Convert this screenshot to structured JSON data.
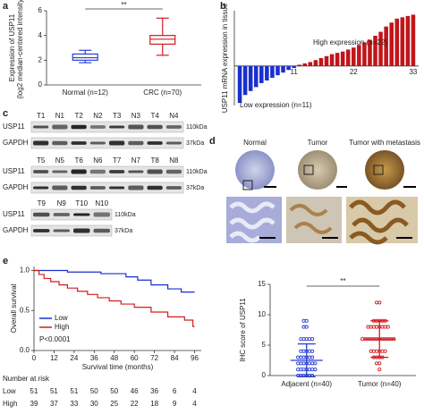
{
  "panel_labels": [
    "a",
    "b",
    "c",
    "d",
    "e"
  ],
  "chart_data": [
    {
      "type": "box",
      "ylabel": [
        "Expression of USP11",
        "(log2 median-centered intensity)"
      ],
      "ylim": [
        0,
        6
      ],
      "yticks": [
        0,
        2,
        4,
        6
      ],
      "significance": "**",
      "categories": [
        "Normal (n=12)",
        "CRC (n=70)"
      ],
      "series": [
        {
          "color": "#2a3fd0",
          "min": 1.8,
          "q1": 2.0,
          "median": 2.2,
          "q3": 2.5,
          "max": 2.8
        },
        {
          "color": "#d01c22",
          "min": 2.4,
          "q1": 3.3,
          "median": 3.7,
          "q3": 4.0,
          "max": 5.4
        }
      ]
    },
    {
      "type": "waterfall",
      "ylabel": "USP11 mRNA expression in tissue",
      "ylim": [
        -3,
        4.2
      ],
      "xlim": [
        0,
        34
      ],
      "xticks": [
        11,
        22,
        33
      ],
      "series": [
        {
          "name": "Low expression (n=11)",
          "color": "#1a2fd0",
          "x": [
            1,
            2,
            3,
            4,
            5,
            6,
            7,
            8,
            9,
            10,
            11
          ],
          "values": [
            -2.8,
            -2.2,
            -1.9,
            -1.6,
            -1.3,
            -1.1,
            -0.9,
            -0.7,
            -0.5,
            -0.3,
            -0.15
          ]
        },
        {
          "name": "High expression (n=22)",
          "color": "#c0151a",
          "x": [
            12,
            13,
            14,
            15,
            16,
            17,
            18,
            19,
            20,
            21,
            22,
            23,
            24,
            25,
            26,
            27,
            28,
            29,
            30,
            31,
            32,
            33
          ],
          "values": [
            0.1,
            0.2,
            0.3,
            0.45,
            0.6,
            0.75,
            0.9,
            1.0,
            1.1,
            1.25,
            1.4,
            1.6,
            1.8,
            2.0,
            2.3,
            2.6,
            3.0,
            3.3,
            3.6,
            3.7,
            3.8,
            3.9
          ]
        }
      ]
    },
    {
      "type": "strip",
      "ylabel": "IHC score of USP11",
      "ylim": [
        0,
        15
      ],
      "yticks": [
        0,
        5,
        10,
        15
      ],
      "significance": "**",
      "categories": [
        "Adjacent (n=40)",
        "Tumor (n=40)"
      ],
      "series": [
        {
          "color": "#2a3fd0",
          "mean": 2.5,
          "sd": 2.7,
          "values": [
            0,
            0,
            0,
            0,
            0,
            0,
            1,
            1,
            1,
            1,
            1,
            1,
            1,
            2,
            2,
            2,
            2,
            2,
            2,
            2,
            3,
            3,
            3,
            3,
            3,
            3,
            4,
            4,
            4,
            4,
            4,
            6,
            6,
            6,
            6,
            6,
            8,
            8,
            9,
            9
          ]
        },
        {
          "color": "#d01c22",
          "mean": 6,
          "sd": 3,
          "values": [
            1,
            2,
            2,
            3,
            3,
            3,
            3,
            4,
            4,
            4,
            4,
            4,
            4,
            6,
            6,
            6,
            6,
            6,
            6,
            6,
            6,
            6,
            6,
            6,
            6,
            8,
            8,
            8,
            8,
            8,
            8,
            8,
            8,
            9,
            9,
            9,
            9,
            9,
            12,
            12
          ]
        }
      ]
    },
    {
      "type": "line",
      "xlabel": "Survival time (months)",
      "ylabel": "Overall survival",
      "xlim": [
        0,
        100
      ],
      "ylim": [
        0,
        1.05
      ],
      "xticks": [
        0,
        12,
        24,
        36,
        48,
        60,
        72,
        84,
        96
      ],
      "yticks": [
        {
          "value": 0,
          "label": "0.0"
        },
        0.5,
        {
          "value": 1,
          "label": "1.0"
        }
      ],
      "legend": "bottom-left",
      "annotation": "P<0.0001",
      "series": [
        {
          "name": "Low",
          "color": "#1a2fd0",
          "x": [
            0,
            20,
            20,
            40,
            40,
            55,
            55,
            62,
            62,
            70,
            70,
            80,
            80,
            88,
            88,
            96
          ],
          "values": [
            1,
            1,
            0.98,
            0.98,
            0.96,
            0.96,
            0.92,
            0.92,
            0.88,
            0.88,
            0.82,
            0.82,
            0.77,
            0.77,
            0.73,
            0.73
          ]
        },
        {
          "name": "High",
          "color": "#d01c22",
          "x": [
            0,
            3,
            3,
            6,
            6,
            10,
            10,
            15,
            15,
            20,
            20,
            26,
            26,
            32,
            32,
            38,
            38,
            45,
            45,
            52,
            52,
            60,
            60,
            70,
            70,
            80,
            80,
            90,
            90,
            95,
            95,
            96
          ],
          "values": [
            1,
            1,
            0.95,
            0.95,
            0.9,
            0.9,
            0.86,
            0.86,
            0.82,
            0.82,
            0.78,
            0.78,
            0.74,
            0.74,
            0.7,
            0.7,
            0.66,
            0.66,
            0.62,
            0.62,
            0.58,
            0.58,
            0.54,
            0.54,
            0.48,
            0.48,
            0.42,
            0.42,
            0.38,
            0.38,
            0.3,
            0.3
          ]
        }
      ],
      "risk_table": {
        "title": "Number at risk",
        "rows": [
          {
            "name": "Low",
            "values": [
              51,
              51,
              51,
              50,
              50,
              46,
              36,
              6,
              4
            ]
          },
          {
            "name": "High",
            "values": [
              39,
              37,
              33,
              30,
              25,
              22,
              18,
              9,
              4
            ]
          }
        ]
      }
    }
  ],
  "blots": {
    "groups": [
      {
        "lanes": [
          "T1",
          "N1",
          "T2",
          "N2",
          "T3",
          "N3",
          "T4",
          "N4"
        ],
        "rows": [
          {
            "label": "USP11",
            "size": "110kDa"
          },
          {
            "label": "GAPDH",
            "size": "37kDa"
          }
        ]
      },
      {
        "lanes": [
          "T5",
          "N5",
          "T6",
          "N6",
          "T7",
          "N7",
          "T8",
          "N8"
        ],
        "rows": [
          {
            "label": "USP11",
            "size": "110kDa"
          },
          {
            "label": "GAPDH",
            "size": "37kDa"
          }
        ]
      },
      {
        "lanes": [
          "T9",
          "N9",
          "T10",
          "N10"
        ],
        "rows": [
          {
            "label": "USP11",
            "size": "110kDa"
          },
          {
            "label": "GAPDH",
            "size": "37kDa"
          }
        ]
      }
    ]
  },
  "ihc": {
    "columns": [
      "Normal",
      "Tumor",
      "Tumor with metastasis"
    ]
  }
}
